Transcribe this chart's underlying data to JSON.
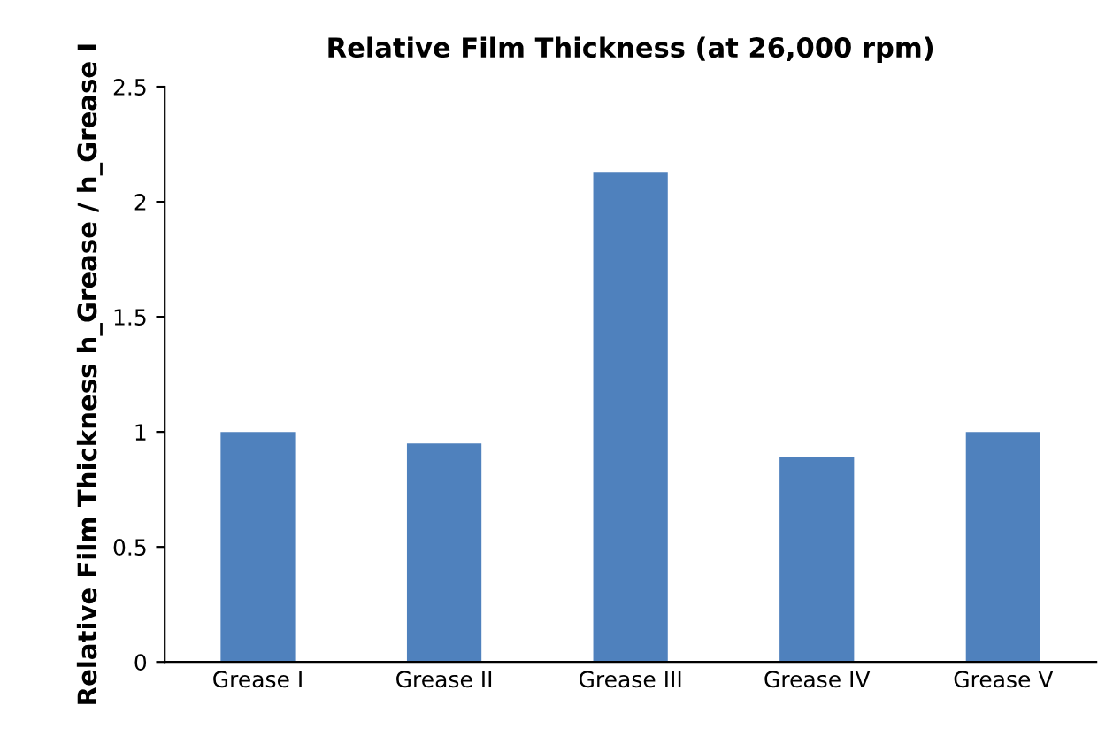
{
  "chart_data": {
    "type": "bar",
    "title": "Relative Film Thickness (at 26,000 rpm)",
    "ylabel": "Relative Film Thickness h_Grease / h_Grease I",
    "categories": [
      "Grease I",
      "Grease II",
      "Grease III",
      "Grease IV",
      "Grease V"
    ],
    "values": [
      1.0,
      0.95,
      2.13,
      0.89,
      1.0
    ],
    "color": "#4f81bd",
    "ylim": [
      0,
      2.5
    ],
    "yticks": [
      0,
      0.5,
      1,
      1.5,
      2,
      2.5
    ],
    "grid": false,
    "legend": false
  }
}
